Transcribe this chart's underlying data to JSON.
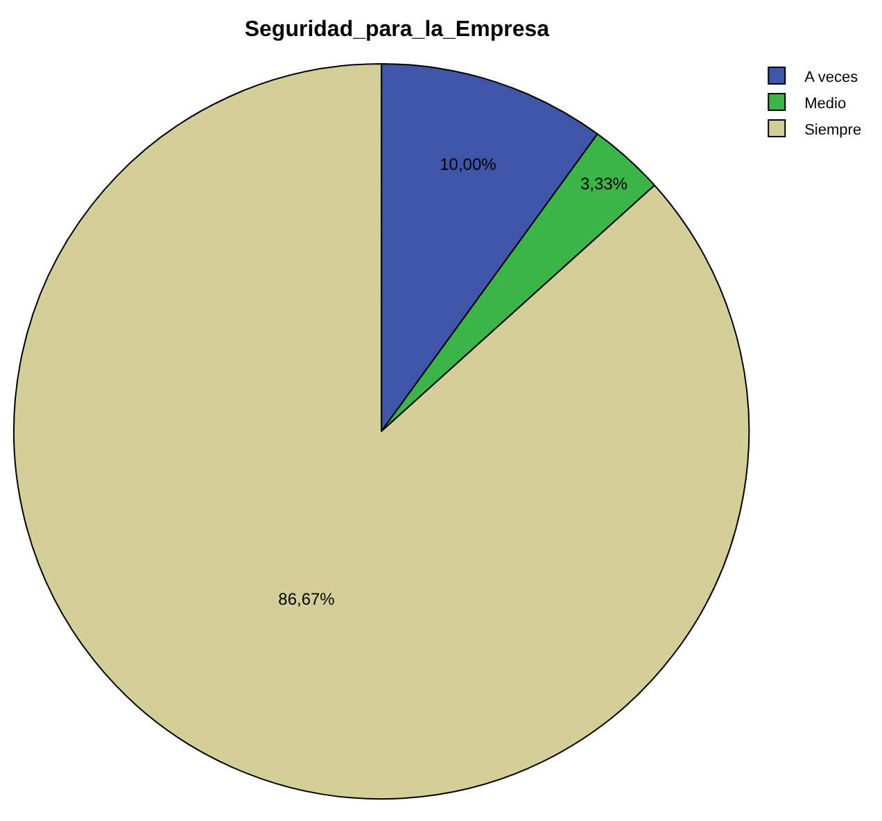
{
  "chart_data": {
    "type": "pie",
    "title": "Seguridad_para_la_Empresa",
    "categories": [
      "A veces",
      "Medio",
      "Siempre"
    ],
    "values": [
      10,
      3.33,
      86.67
    ],
    "colors": [
      "#3f55a8",
      "#3cb44a",
      "#d4ce98"
    ],
    "value_labels": [
      "10,00%",
      "3,33%",
      "86,67%"
    ],
    "legend": "top right"
  }
}
